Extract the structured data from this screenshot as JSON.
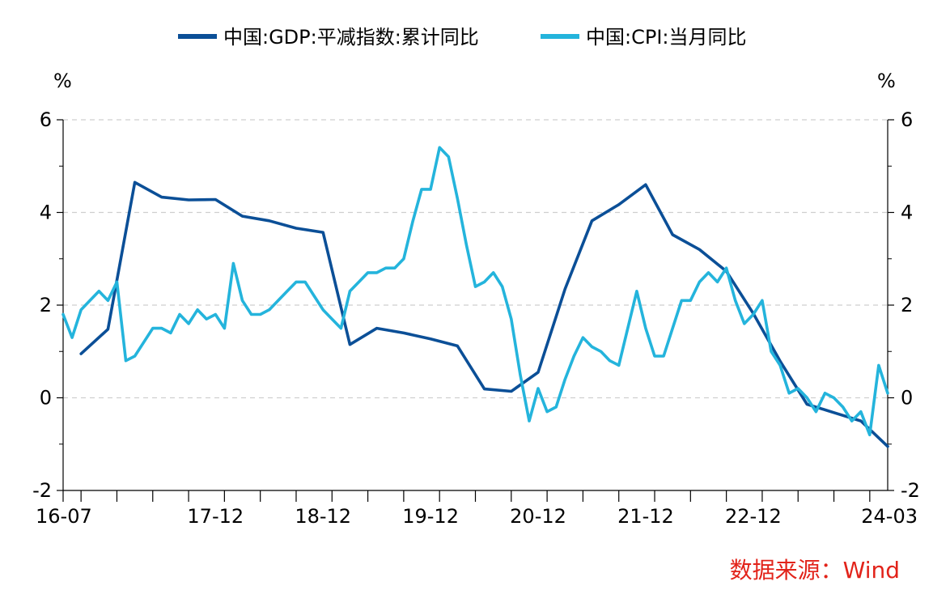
{
  "chart_data": {
    "type": "line",
    "title": "",
    "legend": [
      {
        "name": "中国:GDP:平减指数:累计同比",
        "color": "#0b4f97"
      },
      {
        "name": "中国:CPI:当月同比",
        "color": "#24b4dc"
      }
    ],
    "legend_position": "top",
    "unit_left": "%",
    "unit_right": "%",
    "y_range": [
      -2,
      6
    ],
    "y_ticks": [
      -2,
      0,
      2,
      4,
      6
    ],
    "x_labels": [
      {
        "text": "16-07",
        "index": 0
      },
      {
        "text": "17-12",
        "index": 17
      },
      {
        "text": "18-12",
        "index": 29
      },
      {
        "text": "19-12",
        "index": 41
      },
      {
        "text": "20-12",
        "index": 53
      },
      {
        "text": "21-12",
        "index": 65
      },
      {
        "text": "22-12",
        "index": 77
      },
      {
        "text": "24-03",
        "index": 92
      }
    ],
    "x_range": [
      0,
      92
    ],
    "grid": true,
    "series": [
      {
        "name": "中国:GDP:平减指数:累计同比",
        "color": "#0b4f97",
        "points": [
          [
            2,
            0.95
          ],
          [
            5,
            1.48
          ],
          [
            8,
            4.65
          ],
          [
            11,
            4.33
          ],
          [
            14,
            4.27
          ],
          [
            17,
            4.28
          ],
          [
            20,
            3.92
          ],
          [
            23,
            3.82
          ],
          [
            26,
            3.66
          ],
          [
            29,
            3.57
          ],
          [
            32,
            1.15
          ],
          [
            35,
            1.5
          ],
          [
            38,
            1.4
          ],
          [
            41,
            1.27
          ],
          [
            44,
            1.12
          ],
          [
            47,
            0.19
          ],
          [
            50,
            0.14
          ],
          [
            53,
            0.55
          ],
          [
            56,
            2.35
          ],
          [
            59,
            3.82
          ],
          [
            62,
            4.17
          ],
          [
            65,
            4.6
          ],
          [
            68,
            3.52
          ],
          [
            71,
            3.2
          ],
          [
            74,
            2.73
          ],
          [
            77,
            1.82
          ],
          [
            80,
            0.79
          ],
          [
            83,
            -0.14
          ],
          [
            86,
            -0.32
          ],
          [
            89,
            -0.5
          ],
          [
            92,
            -1.05
          ]
        ]
      },
      {
        "name": "中国:CPI:当月同比",
        "color": "#24b4dc",
        "points": [
          [
            0,
            1.8
          ],
          [
            1,
            1.3
          ],
          [
            2,
            1.9
          ],
          [
            3,
            2.1
          ],
          [
            4,
            2.3
          ],
          [
            5,
            2.1
          ],
          [
            6,
            2.5
          ],
          [
            7,
            0.8
          ],
          [
            8,
            0.9
          ],
          [
            9,
            1.2
          ],
          [
            10,
            1.5
          ],
          [
            11,
            1.5
          ],
          [
            12,
            1.4
          ],
          [
            13,
            1.8
          ],
          [
            14,
            1.6
          ],
          [
            15,
            1.9
          ],
          [
            16,
            1.7
          ],
          [
            17,
            1.8
          ],
          [
            18,
            1.5
          ],
          [
            19,
            2.9
          ],
          [
            20,
            2.1
          ],
          [
            21,
            1.8
          ],
          [
            22,
            1.8
          ],
          [
            23,
            1.9
          ],
          [
            24,
            2.1
          ],
          [
            25,
            2.3
          ],
          [
            26,
            2.5
          ],
          [
            27,
            2.5
          ],
          [
            28,
            2.2
          ],
          [
            29,
            1.9
          ],
          [
            30,
            1.7
          ],
          [
            31,
            1.5
          ],
          [
            32,
            2.3
          ],
          [
            33,
            2.5
          ],
          [
            34,
            2.7
          ],
          [
            35,
            2.7
          ],
          [
            36,
            2.8
          ],
          [
            37,
            2.8
          ],
          [
            38,
            3.0
          ],
          [
            39,
            3.8
          ],
          [
            40,
            4.5
          ],
          [
            41,
            4.5
          ],
          [
            42,
            5.4
          ],
          [
            43,
            5.2
          ],
          [
            44,
            4.3
          ],
          [
            45,
            3.3
          ],
          [
            46,
            2.4
          ],
          [
            47,
            2.5
          ],
          [
            48,
            2.7
          ],
          [
            49,
            2.4
          ],
          [
            50,
            1.7
          ],
          [
            51,
            0.5
          ],
          [
            52,
            -0.5
          ],
          [
            53,
            0.2
          ],
          [
            54,
            -0.3
          ],
          [
            55,
            -0.2
          ],
          [
            56,
            0.4
          ],
          [
            57,
            0.9
          ],
          [
            58,
            1.3
          ],
          [
            59,
            1.1
          ],
          [
            60,
            1.0
          ],
          [
            61,
            0.8
          ],
          [
            62,
            0.7
          ],
          [
            63,
            1.5
          ],
          [
            64,
            2.3
          ],
          [
            65,
            1.5
          ],
          [
            66,
            0.9
          ],
          [
            67,
            0.9
          ],
          [
            68,
            1.5
          ],
          [
            69,
            2.1
          ],
          [
            70,
            2.1
          ],
          [
            71,
            2.5
          ],
          [
            72,
            2.7
          ],
          [
            73,
            2.5
          ],
          [
            74,
            2.8
          ],
          [
            75,
            2.1
          ],
          [
            76,
            1.6
          ],
          [
            77,
            1.8
          ],
          [
            78,
            2.1
          ],
          [
            79,
            1.0
          ],
          [
            80,
            0.7
          ],
          [
            81,
            0.1
          ],
          [
            82,
            0.2
          ],
          [
            83,
            0.0
          ],
          [
            84,
            -0.3
          ],
          [
            85,
            0.1
          ],
          [
            86,
            0.0
          ],
          [
            87,
            -0.2
          ],
          [
            88,
            -0.5
          ],
          [
            89,
            -0.3
          ],
          [
            90,
            -0.8
          ],
          [
            91,
            0.7
          ],
          [
            92,
            0.1
          ]
        ]
      }
    ],
    "source_text": "数据来源：Wind",
    "source_color": "#e2231a"
  }
}
